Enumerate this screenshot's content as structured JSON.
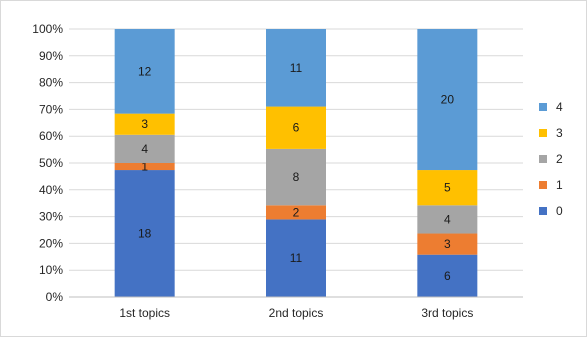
{
  "chart_data": {
    "type": "bar",
    "stacked": true,
    "normalized": true,
    "categories": [
      "1st topics",
      "2nd topics",
      "3rd topics"
    ],
    "series": [
      {
        "name": "0",
        "color": "#4472c4",
        "values": [
          18,
          11,
          6
        ]
      },
      {
        "name": "1",
        "color": "#ed7d31",
        "values": [
          1,
          2,
          3
        ]
      },
      {
        "name": "2",
        "color": "#a5a5a5",
        "values": [
          4,
          8,
          4
        ]
      },
      {
        "name": "3",
        "color": "#ffc000",
        "values": [
          3,
          6,
          5
        ]
      },
      {
        "name": "4",
        "color": "#5b9bd5",
        "values": [
          12,
          11,
          20
        ]
      }
    ],
    "y_ticks": [
      "0%",
      "10%",
      "20%",
      "30%",
      "40%",
      "50%",
      "60%",
      "70%",
      "80%",
      "90%",
      "100%"
    ],
    "ylim": [
      0,
      100
    ],
    "grid": true,
    "legend_placement": "right",
    "legend_order": [
      "4",
      "3",
      "2",
      "1",
      "0"
    ]
  }
}
